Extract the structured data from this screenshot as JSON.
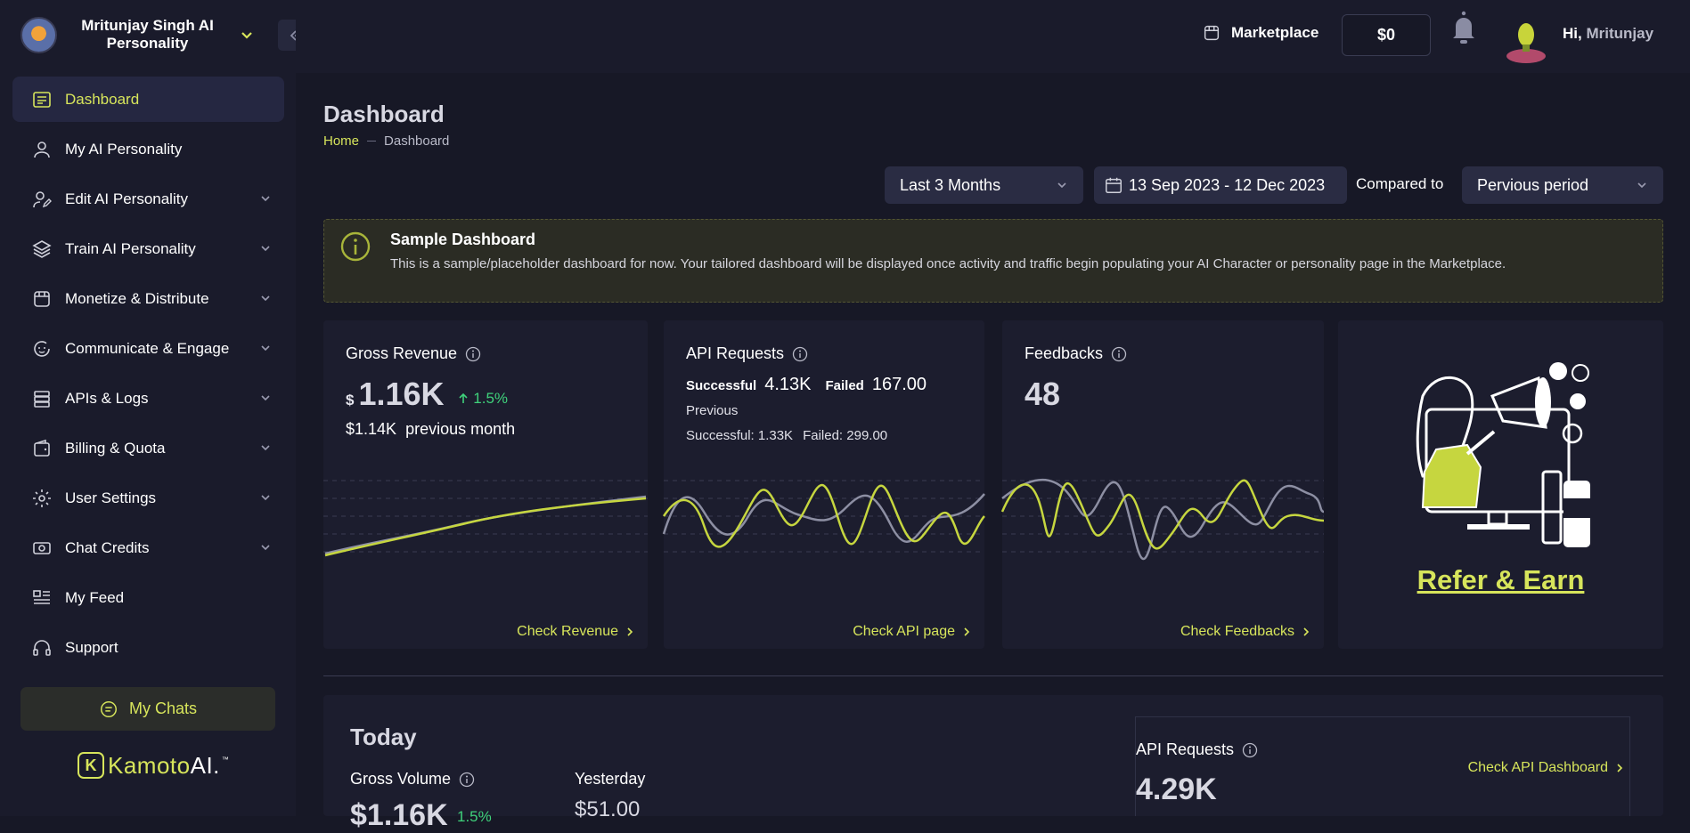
{
  "sidebar": {
    "brand_name": "Mritunjay Singh AI Personality",
    "items": [
      {
        "label": "Dashboard",
        "icon": "dashboard-icon",
        "active": true,
        "expandable": false
      },
      {
        "label": "My AI Personality",
        "icon": "user-icon",
        "active": false,
        "expandable": false
      },
      {
        "label": "Edit AI Personality",
        "icon": "user-edit-icon",
        "active": false,
        "expandable": true
      },
      {
        "label": "Train AI Personality",
        "icon": "layers-icon",
        "active": false,
        "expandable": true
      },
      {
        "label": "Monetize & Distribute",
        "icon": "store-icon",
        "active": false,
        "expandable": true
      },
      {
        "label": "Communicate & Engage",
        "icon": "chat-face-icon",
        "active": false,
        "expandable": true
      },
      {
        "label": "APIs & Logs",
        "icon": "server-icon",
        "active": false,
        "expandable": true
      },
      {
        "label": "Billing & Quota",
        "icon": "wallet-icon",
        "active": false,
        "expandable": true
      },
      {
        "label": "User Settings",
        "icon": "gear-icon",
        "active": false,
        "expandable": true
      },
      {
        "label": "Chat Credits",
        "icon": "cash-icon",
        "active": false,
        "expandable": true
      },
      {
        "label": "My Feed",
        "icon": "feed-icon",
        "active": false,
        "expandable": false
      },
      {
        "label": "Support",
        "icon": "headset-icon",
        "active": false,
        "expandable": false
      }
    ],
    "my_chats_label": "My Chats",
    "logo": {
      "mark": "K",
      "text_a": "Kamoto",
      "text_b": "AI.",
      "tm": "™"
    }
  },
  "topbar": {
    "marketplace_label": "Marketplace",
    "balance": "$0",
    "greeting_hi": "Hi,",
    "greeting_name": "Mritunjay"
  },
  "page": {
    "title": "Dashboard",
    "breadcrumb_home": "Home",
    "breadcrumb_current": "Dashboard"
  },
  "filters": {
    "range": "Last 3 Months",
    "date_range": "13 Sep 2023 - 12 Dec 2023",
    "compared_label": "Compared to",
    "compared_value": "Pervious period"
  },
  "notice": {
    "title": "Sample Dashboard",
    "body": "This is a sample/placeholder dashboard for now. Your tailored dashboard will be displayed once activity and traffic begin populating your AI Character or personality page in the Marketplace."
  },
  "cards": {
    "revenue": {
      "title": "Gross Revenue",
      "currency": "$",
      "value": "1.16K",
      "trend": "1.5%",
      "previous_value": "$1.14K",
      "previous_label": "previous month",
      "link": "Check Revenue"
    },
    "api": {
      "title": "API Requests",
      "successful_label": "Successful",
      "successful_value": "4.13K",
      "failed_label": "Failed",
      "failed_value": "167.00",
      "previous_label": "Previous",
      "previous_successful": "Successful: 1.33K",
      "previous_failed": "Failed: 299.00",
      "link": "Check API page"
    },
    "feedbacks": {
      "title": "Feedbacks",
      "value": "48",
      "link": "Check Feedbacks"
    },
    "refer": {
      "label": "Refer & Earn"
    }
  },
  "today": {
    "title": "Today",
    "gross_volume_label": "Gross Volume",
    "gross_volume_value": "$1.16K",
    "gross_volume_trend": "1.5%",
    "yesterday_label": "Yesterday",
    "yesterday_value": "$51.00",
    "api_requests_label": "API Requests",
    "api_requests_value": "4.29K",
    "api_dashboard_link": "Check API Dashboard"
  },
  "colors": {
    "accent": "#d7e55b",
    "background": "#171826",
    "sidebar": "#1a1b2b",
    "card": "#1c1d2e",
    "positive": "#3fd17b",
    "series_a": "#c6d63f",
    "series_b": "#8d8fa3"
  }
}
